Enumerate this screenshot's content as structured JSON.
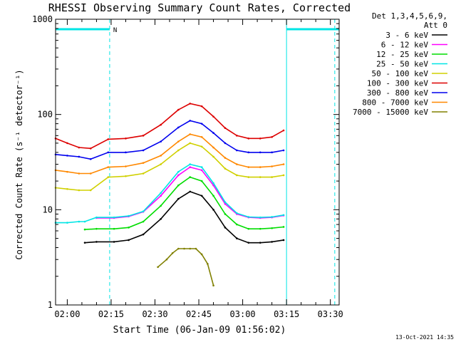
{
  "chart_data": {
    "type": "line",
    "title": "RHESSI Observing Summary Count Rates, Corrected",
    "xlabel": "Start Time (06-Jan-09 01:56:02)",
    "ylabel": "Corrected Count Rate (s⁻¹ detector⁻¹)",
    "yscale": "log",
    "ylim": [
      1,
      1000
    ],
    "xlim_minutes_after_start": [
      0,
      97
    ],
    "x_tick_labels": [
      "02:00",
      "02:15",
      "02:30",
      "02:45",
      "03:00",
      "03:15",
      "03:30"
    ],
    "x_tick_minutes": [
      4,
      19,
      34,
      49,
      64,
      79,
      94
    ],
    "y_tick_labels": [
      "1",
      "10",
      "100",
      "1000"
    ],
    "y_tick_values": [
      1,
      10,
      100,
      1000
    ],
    "grid": false,
    "legend_position": "top-right",
    "legend_header": [
      "Det 1,3,4,5,6,9,",
      "Att 0"
    ],
    "timestamp": "13-Oct-2021 14:35",
    "night_marker": "N",
    "night_bar_ranges_minutes": [
      [
        0,
        18.5
      ],
      [
        79,
        97
      ]
    ],
    "vertical_dashed_lines_minutes": [
      18.5,
      95.5
    ],
    "vertical_solid_lines_minutes": [
      79
    ],
    "series": [
      {
        "name": "3 - 6 keV",
        "color": "#000000",
        "x": [
          10,
          14,
          20,
          25,
          30,
          36,
          42,
          46,
          50,
          54,
          58,
          62,
          66,
          70,
          74,
          78
        ],
        "y": [
          4.5,
          4.6,
          4.6,
          4.8,
          5.5,
          8,
          13,
          15.5,
          14,
          10,
          6.5,
          5,
          4.5,
          4.5,
          4.6,
          4.8
        ]
      },
      {
        "name": "6 - 12 keV",
        "color": "#ff00ff",
        "x": [
          14,
          20,
          25,
          30,
          36,
          42,
          46,
          50,
          54,
          58,
          62,
          66,
          70,
          74,
          78
        ],
        "y": [
          8.2,
          8.2,
          8.5,
          9.5,
          14,
          23,
          28,
          26,
          18,
          11.5,
          9,
          8.3,
          8.2,
          8.3,
          8.7
        ]
      },
      {
        "name": "12 - 25 keV",
        "color": "#00dd00",
        "x": [
          10,
          14,
          20,
          25,
          30,
          36,
          42,
          46,
          50,
          54,
          58,
          62,
          66,
          70,
          74,
          78
        ],
        "y": [
          6.2,
          6.3,
          6.3,
          6.5,
          7.5,
          11,
          18,
          22,
          20,
          14,
          9,
          7,
          6.3,
          6.3,
          6.4,
          6.6
        ]
      },
      {
        "name": "25 - 50 keV",
        "color": "#00e5e5",
        "x": [
          0,
          4,
          8,
          10,
          14,
          20,
          25,
          30,
          36,
          42,
          46,
          50,
          54,
          58,
          62,
          66,
          70,
          74,
          78
        ],
        "y": [
          7.3,
          7.3,
          7.5,
          7.5,
          8.3,
          8.3,
          8.6,
          9.6,
          15,
          25,
          30,
          28,
          19,
          12,
          9.2,
          8.4,
          8.3,
          8.4,
          8.8
        ]
      },
      {
        "name": "50 - 100 keV",
        "color": "#d0d000",
        "x": [
          0,
          4,
          8,
          12,
          18,
          24,
          30,
          36,
          42,
          46,
          50,
          54,
          58,
          62,
          66,
          70,
          74,
          78
        ],
        "y": [
          17,
          16.5,
          16,
          16,
          22,
          22.5,
          24,
          30,
          42,
          50,
          46,
          36,
          27,
          23,
          22,
          22,
          22,
          23
        ]
      },
      {
        "name": "100 - 300 keV",
        "color": "#dd0000",
        "x": [
          0,
          4,
          8,
          12,
          18,
          24,
          30,
          36,
          42,
          46,
          50,
          54,
          58,
          62,
          66,
          70,
          74,
          78
        ],
        "y": [
          56,
          50,
          45,
          44,
          55,
          56,
          60,
          78,
          112,
          130,
          122,
          95,
          72,
          60,
          56,
          56,
          58,
          68
        ]
      },
      {
        "name": "300 - 800 keV",
        "color": "#0000ee",
        "x": [
          0,
          4,
          8,
          12,
          18,
          24,
          30,
          36,
          42,
          46,
          50,
          54,
          58,
          62,
          66,
          70,
          74,
          78
        ],
        "y": [
          38,
          37,
          36,
          34,
          40,
          40,
          42,
          52,
          73,
          86,
          80,
          64,
          50,
          42,
          40,
          40,
          40,
          42
        ]
      },
      {
        "name": "800 - 7000 keV",
        "color": "#ff8800",
        "x": [
          0,
          4,
          8,
          12,
          18,
          24,
          30,
          36,
          42,
          46,
          50,
          54,
          58,
          62,
          66,
          70,
          74,
          78
        ],
        "y": [
          26,
          25,
          24,
          24,
          28,
          28.5,
          31,
          37,
          52,
          62,
          58,
          45,
          35,
          30,
          28,
          28,
          28.5,
          30
        ]
      },
      {
        "name": "7000 - 15000 keV",
        "color": "#808000",
        "x": [
          35,
          38,
          40,
          42,
          44,
          46,
          48,
          50,
          52,
          54
        ],
        "y": [
          2.5,
          3,
          3.5,
          3.9,
          3.9,
          3.9,
          3.9,
          3.4,
          2.7,
          1.6
        ]
      }
    ]
  }
}
